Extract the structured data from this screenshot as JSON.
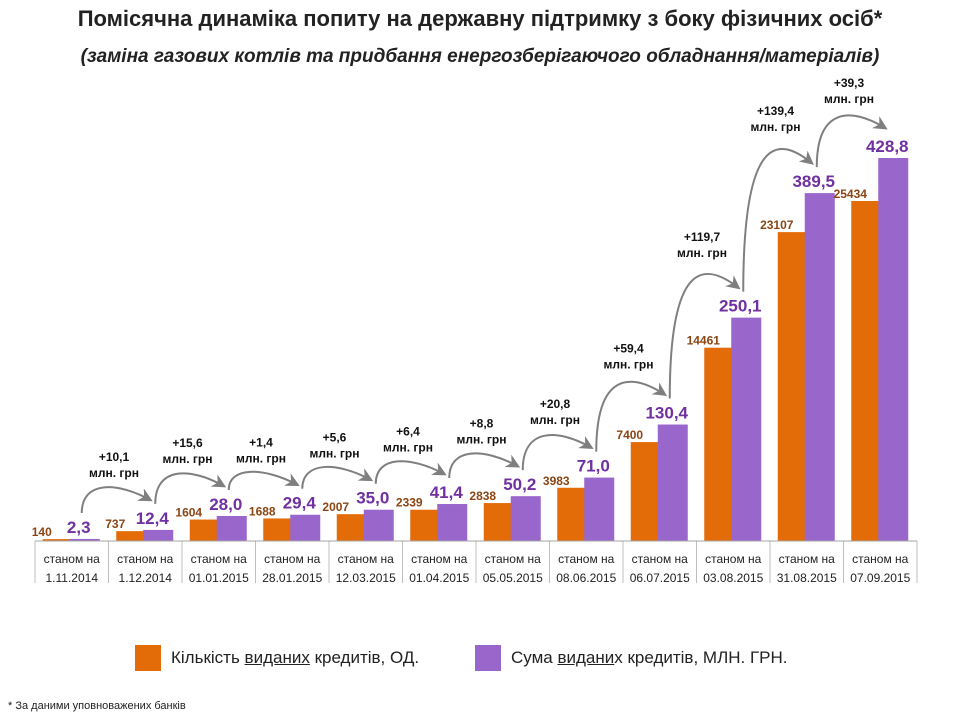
{
  "title": "Помісячна динаміка попиту на державну підтримку з боку фізичних осіб*",
  "subtitle": "(заміна газових котлів  та  придбання енергозберігаючого обладнання/матеріалів)",
  "colors": {
    "count": "#E36C09",
    "sum": "#9966CC",
    "count_label": "#8B4513",
    "sum_label": "#7030A0",
    "arrow": "#7F7F7F"
  },
  "chart_data": {
    "type": "bar",
    "categories": [
      [
        "станом на",
        "1.11.2014"
      ],
      [
        "станом на",
        "1.12.2014"
      ],
      [
        "станом на",
        "01.01.2015"
      ],
      [
        "станом на",
        "28.01.2015"
      ],
      [
        "станом на",
        "12.03.2015"
      ],
      [
        "станом на",
        "01.04.2015"
      ],
      [
        "станом на",
        "05.05.2015"
      ],
      [
        "станом на",
        "08.06.2015"
      ],
      [
        "станом на",
        "06.07.2015"
      ],
      [
        "станом на",
        "03.08.2015"
      ],
      [
        "станом на",
        "31.08.2015"
      ],
      [
        "станом на",
        "07.09.2015"
      ]
    ],
    "series": [
      {
        "name": "Кількість виданих кредитів, ОД.",
        "values": [
          140,
          737,
          1604,
          1688,
          2007,
          2339,
          2838,
          3983,
          7400,
          14461,
          23107,
          25434
        ],
        "labels": [
          "140",
          "737",
          "1604",
          "1688",
          "2007",
          "2339",
          "2838",
          "3983",
          "7400",
          "14461",
          "23107",
          "25434"
        ]
      },
      {
        "name": "Сума виданих кредитів, МЛН. ГРН.",
        "values": [
          2.3,
          12.4,
          28.0,
          29.4,
          35.0,
          41.4,
          50.2,
          71.0,
          130.4,
          250.1,
          389.5,
          428.8
        ],
        "labels": [
          "2,3",
          "12,4",
          "28,0",
          "29,4",
          "35,0",
          "41,4",
          "50,2",
          "71,0",
          "130,4",
          "250,1",
          "389,5",
          "428,8"
        ]
      }
    ],
    "increments": [
      [
        "+10,1",
        "млн. грн"
      ],
      [
        "+15,6",
        "млн. грн"
      ],
      [
        "+1,4",
        "млн. грн"
      ],
      [
        "+5,6",
        "млн. грн"
      ],
      [
        "+6,4",
        "млн. грн"
      ],
      [
        "+8,8",
        "млн. грн"
      ],
      [
        "+20,8",
        "млн. грн"
      ],
      [
        "+59,4",
        "млн. грн"
      ],
      [
        "+119,7",
        "млн. грн"
      ],
      [
        "+139,4",
        "млн. грн"
      ],
      [
        "+39,3",
        "млн. грн"
      ]
    ],
    "legend": {
      "count": {
        "pre": "Кількість ",
        "u": "виданих",
        "post": " кредитів, ОД."
      },
      "sum": {
        "pre": "Сума ",
        "u": "видани",
        "post": "х кредитів, МЛН. ГРН."
      }
    },
    "legend_position": "bottom",
    "grid": false
  },
  "footnote": "* За даними уповноважених банків"
}
